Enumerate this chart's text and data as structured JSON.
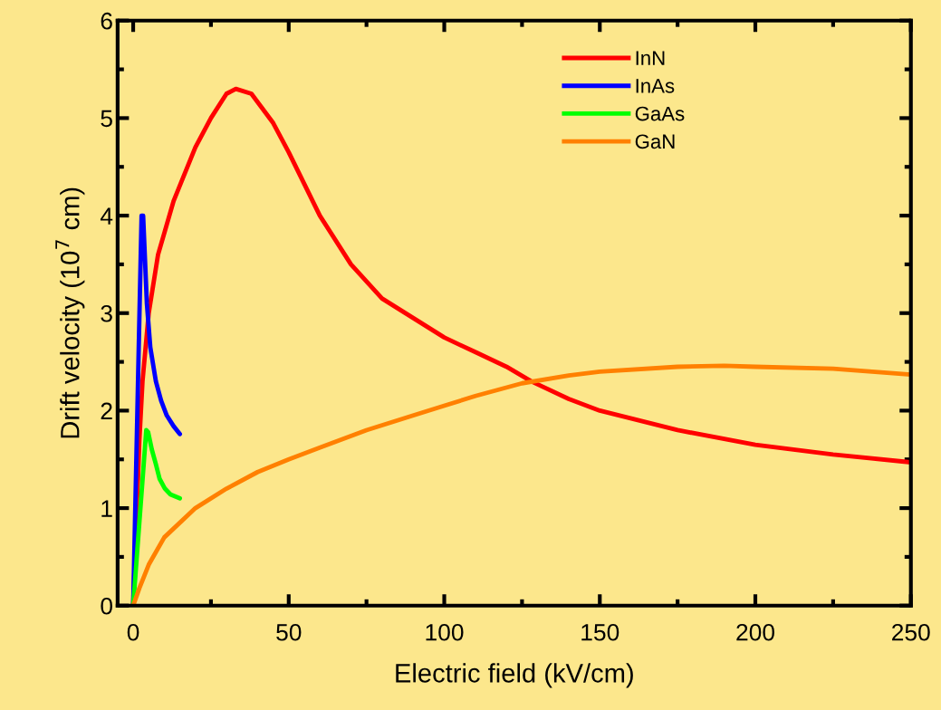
{
  "chart_data": {
    "type": "line",
    "xlabel": "Electric field (kV/cm)",
    "ylabel": "Drift velocity (10$^{7}$ cm)",
    "xlim": [
      -5,
      250
    ],
    "xticks": [
      0,
      50,
      100,
      150,
      200,
      250
    ],
    "ylim": [
      0,
      6
    ],
    "yticks": [
      0,
      1,
      2,
      3,
      4,
      5,
      6
    ],
    "legend": "top right",
    "grid": false,
    "line_style": "solid",
    "marker": "none",
    "series": [
      {
        "name": "InN",
        "color": "#ff0000",
        "x": [
          0,
          2,
          3,
          5,
          8,
          13,
          20,
          25,
          30,
          33,
          38,
          45,
          50,
          60,
          70,
          80,
          90,
          100,
          110,
          120,
          128,
          140,
          150,
          175,
          200,
          225,
          250
        ],
        "values": [
          0,
          1.7,
          2.3,
          3.0,
          3.6,
          4.15,
          4.7,
          5.0,
          5.25,
          5.3,
          5.25,
          4.95,
          4.65,
          4.0,
          3.5,
          3.15,
          2.95,
          2.75,
          2.6,
          2.45,
          2.3,
          2.12,
          2.0,
          1.8,
          1.65,
          1.55,
          1.47
        ]
      },
      {
        "name": "InAs",
        "color": "#0000ff",
        "x": [
          0,
          2.7,
          3.2,
          4.4,
          5.5,
          7.3,
          9,
          10.8,
          13,
          15
        ],
        "values": [
          0,
          4.0,
          4.0,
          3.1,
          2.65,
          2.3,
          2.1,
          1.95,
          1.84,
          1.76
        ]
      },
      {
        "name": "GaAs",
        "color": "#00ff00",
        "x": [
          0,
          4.2,
          4.8,
          6,
          7.3,
          8.5,
          10.2,
          12,
          15
        ],
        "values": [
          0,
          1.8,
          1.78,
          1.6,
          1.45,
          1.3,
          1.2,
          1.14,
          1.1
        ]
      },
      {
        "name": "GaN",
        "color": "#ff8000",
        "x": [
          0,
          2,
          5,
          10,
          20,
          30,
          40,
          50,
          60,
          75,
          90,
          100,
          110,
          125,
          140,
          150,
          175,
          190,
          200,
          225,
          250
        ],
        "values": [
          0,
          0.18,
          0.42,
          0.7,
          1.0,
          1.2,
          1.37,
          1.5,
          1.62,
          1.8,
          1.95,
          2.05,
          2.15,
          2.28,
          2.36,
          2.4,
          2.45,
          2.46,
          2.45,
          2.43,
          2.37
        ]
      }
    ]
  }
}
